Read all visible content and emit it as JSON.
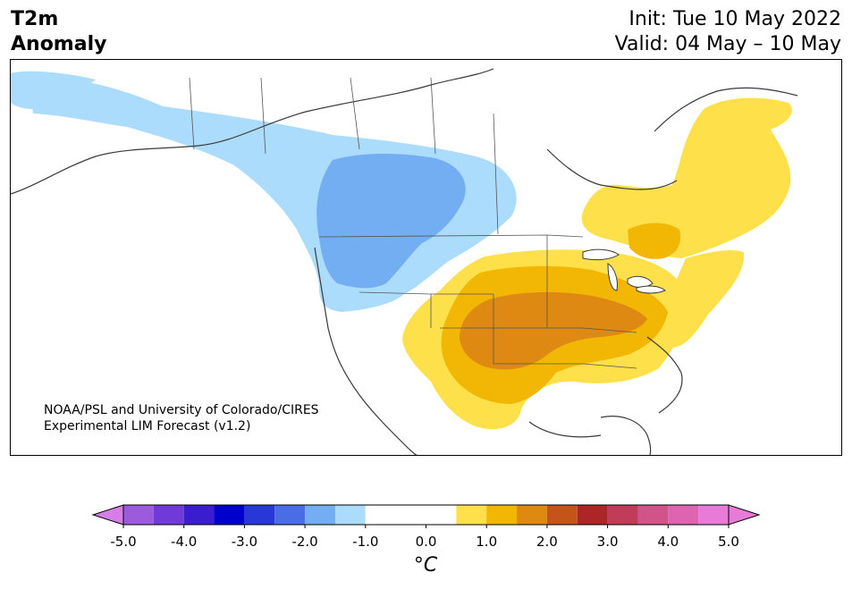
{
  "header": {
    "variable": "T2m",
    "subtitle": "Anomaly",
    "init": "Init: Tue 10 May 2022",
    "valid": "Valid: 04 May – 10 May"
  },
  "credit": {
    "line1": "NOAA/PSL and University of Colorado/CIRES",
    "line2": "Experimental LIM Forecast (v1.2)"
  },
  "colorbar": {
    "unit": "°C",
    "ticks": [
      "-5.0",
      "-4.0",
      "-3.0",
      "-2.0",
      "-1.0",
      "0.0",
      "1.0",
      "2.0",
      "3.0",
      "4.0",
      "5.0"
    ],
    "levels": [
      -5.0,
      -4.5,
      -4.0,
      -3.5,
      -3.0,
      -2.5,
      -2.0,
      -1.5,
      -1.0,
      -0.5,
      0.5,
      1.0,
      1.5,
      2.0,
      2.5,
      3.0,
      3.5,
      4.0,
      4.5,
      5.0
    ],
    "colors": [
      "#d67ee8",
      "#9c5bdc",
      "#6f3ad8",
      "#3b1dd0",
      "#0000cc",
      "#2838d6",
      "#4a6ce6",
      "#74aef2",
      "#acdcfb",
      "#ffffff",
      "#ffffff",
      "#fee04a",
      "#f2b705",
      "#de8a12",
      "#c4541a",
      "#ac2628",
      "#c03c58",
      "#d05488",
      "#dc64b0",
      "#e87ad8"
    ],
    "under_color": "#d67ee8",
    "over_color": "#e87ad8"
  },
  "map": {
    "projection": "conic",
    "region": "North America",
    "anomaly_areas": [
      {
        "name": "western-canada-cool",
        "value_range": "-1.0 to -0.5",
        "color": "#acdcfb"
      },
      {
        "name": "prairies-cool-core",
        "value_range": "-1.5 to -1.0",
        "color": "#74aef2"
      },
      {
        "name": "quebec-warm",
        "value_range": "0.5 to 1.0",
        "color": "#fee04a"
      },
      {
        "name": "central-us-warm",
        "value_range": "0.5 to 1.0",
        "color": "#fee04a"
      },
      {
        "name": "central-us-warm-2",
        "value_range": "1.0 to 1.5",
        "color": "#f2b705"
      },
      {
        "name": "southern-plains-hot",
        "value_range": "1.5 to 2.0",
        "color": "#de8a12"
      }
    ]
  }
}
